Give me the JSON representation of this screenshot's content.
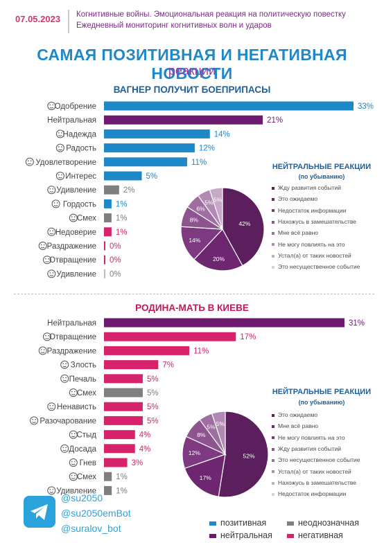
{
  "header": {
    "date": "07.05.2023",
    "line1": "Когнитивные войны. Эмоциональная реакция на политическую повестку",
    "line2": "Ежедневный мониторинг когнитивных волн и ударов"
  },
  "title": "САМАЯ ПОЗИТИВНАЯ И НЕГАТИВНАЯ НОВОСТИ",
  "subtitle": "реакции",
  "colors": {
    "positive": "#1e88c8",
    "neutral": "#6d1a6e",
    "ambiguous": "#7f7f7f",
    "negative": "#d6236c"
  },
  "footer": {
    "handles": [
      "@su2050",
      "@su2050emBot",
      "@suralov_bot"
    ],
    "legend": [
      {
        "label": "позитивная",
        "cat": "positive"
      },
      {
        "label": "неоднозначная",
        "cat": "ambiguous"
      },
      {
        "label": "нейтральная",
        "cat": "neutral"
      },
      {
        "label": "негативная",
        "cat": "negative"
      }
    ]
  },
  "chart_data": [
    {
      "type": "bar",
      "title": "ВАГНЕР ПОЛУЧИТ БОЕПРИПАСЫ",
      "orientation": "horizontal",
      "categories": [
        "Одобрение",
        "Нейтральная",
        "Надежда",
        "Радость",
        "Удовлетворение",
        "Интерес",
        "Удивление",
        "Гордость",
        "Смех",
        "Недоверие",
        "Раздражение",
        "Отвращение",
        "Удивление"
      ],
      "values": [
        33,
        21,
        14,
        12,
        11,
        5,
        2,
        1,
        1,
        1,
        0,
        0,
        0
      ],
      "value_labels": [
        "33%",
        "21%",
        "14%",
        "12%",
        "11%",
        "5%",
        "2%",
        "1%",
        "1%",
        "1%",
        "0%",
        "0%",
        "0%"
      ],
      "bar_colors": [
        "positive",
        "neutral",
        "positive",
        "positive",
        "positive",
        "positive",
        "ambiguous",
        "positive",
        "ambiguous",
        "negative",
        "negative",
        "negative",
        "ambiguous"
      ],
      "icons": [
        "thumbs-up-face",
        "",
        "hope-icon",
        "joy-face",
        "satisfied-face",
        "interest-icon",
        "surprise-face",
        "trophy-icon",
        "laugh-face",
        "distrust-face",
        "irritation-face",
        "disgust-face",
        "surprise-face"
      ]
    },
    {
      "type": "pie",
      "title": "НЕЙТРАЛЬНЫЕ РЕАКЦИИ",
      "subtitle": "(по убыванию)",
      "categories": [
        "Жду развития событий",
        "Это ожидаемо",
        "Недостаток информации",
        "Нахожусь в замешательстве",
        "Мне всё равно",
        "Не могу повлиять на это",
        "Устал(а) от таких новостей",
        "Это несущественное событие"
      ],
      "values": [
        42,
        20,
        14,
        8,
        6,
        5,
        5,
        null
      ],
      "value_labels": [
        "42%",
        "20%",
        "14%",
        "8%",
        "6%",
        "5%",
        "5%",
        ""
      ],
      "slice_colors": [
        "#5a1f5c",
        "#6e2670",
        "#7e3a80",
        "#8e5490",
        "#9e6ea0",
        "#b08ab2",
        "#c6a9c7",
        "#ddd0de"
      ]
    },
    {
      "type": "bar",
      "title": "РОДИНА-МАТЬ В КИЕВЕ",
      "orientation": "horizontal",
      "categories": [
        "Нейтральная",
        "Отвращение",
        "Раздражение",
        "Злость",
        "Печаль",
        "Смех",
        "Ненависть",
        "Разочарование",
        "Стыд",
        "Досада",
        "Гнев",
        "Смех",
        "Удивление"
      ],
      "values": [
        31,
        17,
        11,
        7,
        5,
        5,
        5,
        5,
        4,
        4,
        3,
        1,
        1
      ],
      "value_labels": [
        "31%",
        "17%",
        "11%",
        "7%",
        "5%",
        "5%",
        "5%",
        "5%",
        "4%",
        "4%",
        "3%",
        "1%",
        "1%"
      ],
      "bar_colors": [
        "neutral",
        "negative",
        "negative",
        "negative",
        "negative",
        "ambiguous",
        "negative",
        "negative",
        "negative",
        "negative",
        "negative",
        "ambiguous",
        "ambiguous"
      ],
      "icons": [
        "",
        "disgust-face",
        "irritation-face",
        "anger-face",
        "sadness-face",
        "laugh-face",
        "hate-face",
        "disappointment-face",
        "shame-face",
        "annoyance-face",
        "rage-face",
        "laugh-face",
        "surprise-face"
      ]
    },
    {
      "type": "pie",
      "title": "НЕЙТРАЛЬНЫЕ РЕАКЦИИ",
      "subtitle": "(по убыванию)",
      "categories": [
        "Это ожидаемо",
        "Мне всё равно",
        "Не могу повлиять на это",
        "Жду развития событий",
        "Это несущественное событие",
        "Устал(а) от таких новостей",
        "Нахожусь в замешательстве",
        "Недостаток информации"
      ],
      "values": [
        52,
        17,
        12,
        8,
        5,
        5,
        null,
        null
      ],
      "value_labels": [
        "52%",
        "17%",
        "12%",
        "8%",
        "5%",
        "5%",
        "",
        ""
      ],
      "slice_colors": [
        "#5a1f5c",
        "#6e2670",
        "#7e3a80",
        "#8e5490",
        "#9e6ea0",
        "#b08ab2",
        "#c6a9c7",
        "#ddd0de"
      ]
    }
  ]
}
